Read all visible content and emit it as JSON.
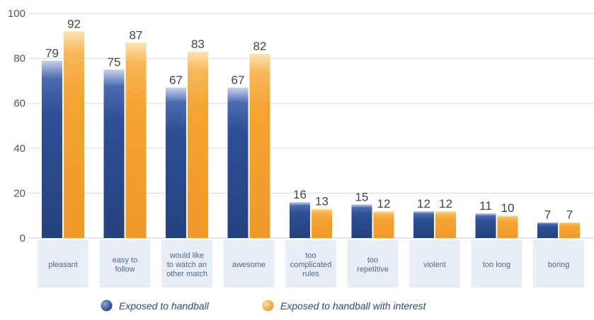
{
  "chart_data": {
    "type": "bar",
    "title": "",
    "xlabel": "",
    "ylabel": "",
    "ylim": [
      0,
      100
    ],
    "yticks": [
      0,
      20,
      40,
      60,
      80,
      100
    ],
    "grid": true,
    "legend_position": "bottom",
    "categories": [
      [
        "pleasant"
      ],
      [
        "easy to",
        "follow"
      ],
      [
        "would like",
        "to watch an",
        "other match"
      ],
      [
        "awesome"
      ],
      [
        "too",
        "complicated",
        "rules"
      ],
      [
        "too",
        "repetitive"
      ],
      [
        "violent"
      ],
      [
        "too long"
      ],
      [
        "boring"
      ]
    ],
    "series": [
      {
        "name": "Exposed to handball",
        "color": "#2e4f95",
        "values": [
          79,
          75,
          67,
          67,
          16,
          15,
          12,
          11,
          7
        ]
      },
      {
        "name": "Exposed to handball with interest",
        "color": "#f4a433",
        "values": [
          92,
          87,
          83,
          82,
          13,
          12,
          12,
          10,
          7
        ]
      }
    ]
  }
}
